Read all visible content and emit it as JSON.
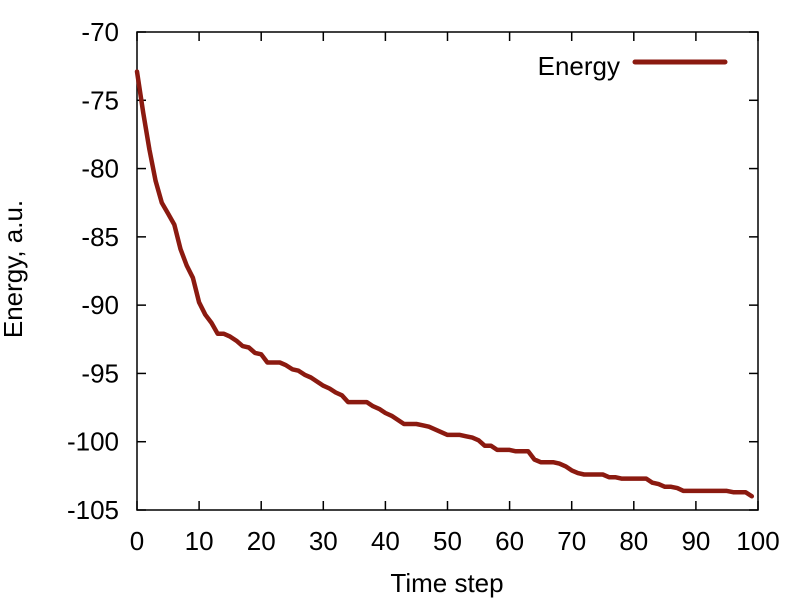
{
  "chart_data": {
    "type": "line",
    "title": "",
    "xlabel": "Time step",
    "ylabel": "Energy, a.u.",
    "xlim": [
      0,
      100
    ],
    "ylim": [
      -105,
      -70
    ],
    "xticks": [
      0,
      10,
      20,
      30,
      40,
      50,
      60,
      70,
      80,
      90,
      100
    ],
    "yticks": [
      -70,
      -75,
      -80,
      -85,
      -90,
      -95,
      -100,
      -105
    ],
    "grid": false,
    "legend_position": "top-right",
    "series": [
      {
        "name": "Energy",
        "color": "#8b1a10",
        "x": [
          0,
          1,
          2,
          3,
          4,
          5,
          6,
          7,
          8,
          9,
          10,
          11,
          12,
          13,
          14,
          15,
          16,
          17,
          18,
          19,
          20,
          21,
          22,
          23,
          24,
          25,
          26,
          27,
          28,
          29,
          30,
          31,
          32,
          33,
          34,
          35,
          36,
          37,
          38,
          39,
          40,
          41,
          42,
          43,
          44,
          45,
          46,
          47,
          48,
          49,
          50,
          51,
          52,
          53,
          54,
          55,
          56,
          57,
          58,
          59,
          60,
          61,
          62,
          63,
          64,
          65,
          66,
          67,
          68,
          69,
          70,
          71,
          72,
          73,
          74,
          75,
          76,
          77,
          78,
          79,
          80,
          81,
          82,
          83,
          84,
          85,
          86,
          87,
          88,
          89,
          90,
          91,
          92,
          93,
          94,
          95,
          96,
          97,
          98,
          99
        ],
        "y": [
          -72.9,
          -75.9,
          -78.6,
          -80.9,
          -82.5,
          -83.3,
          -84.1,
          -85.9,
          -87.1,
          -88.0,
          -89.8,
          -90.7,
          -91.3,
          -92.1,
          -92.1,
          -92.3,
          -92.6,
          -93.0,
          -93.1,
          -93.5,
          -93.6,
          -94.2,
          -94.2,
          -94.2,
          -94.4,
          -94.7,
          -94.8,
          -95.1,
          -95.3,
          -95.6,
          -95.9,
          -96.1,
          -96.4,
          -96.6,
          -97.1,
          -97.1,
          -97.1,
          -97.1,
          -97.4,
          -97.6,
          -97.9,
          -98.1,
          -98.4,
          -98.7,
          -98.7,
          -98.7,
          -98.8,
          -98.9,
          -99.1,
          -99.3,
          -99.5,
          -99.5,
          -99.5,
          -99.6,
          -99.7,
          -99.9,
          -100.3,
          -100.3,
          -100.6,
          -100.6,
          -100.6,
          -100.7,
          -100.7,
          -100.7,
          -101.3,
          -101.5,
          -101.5,
          -101.5,
          -101.6,
          -101.8,
          -102.1,
          -102.3,
          -102.4,
          -102.4,
          -102.4,
          -102.4,
          -102.6,
          -102.6,
          -102.7,
          -102.7,
          -102.7,
          -102.7,
          -102.7,
          -103.0,
          -103.1,
          -103.3,
          -103.3,
          -103.4,
          -103.6,
          -103.6,
          -103.6,
          -103.6,
          -103.6,
          -103.6,
          -103.6,
          -103.6,
          -103.7,
          -103.7,
          -103.7,
          -104.0
        ]
      }
    ]
  }
}
